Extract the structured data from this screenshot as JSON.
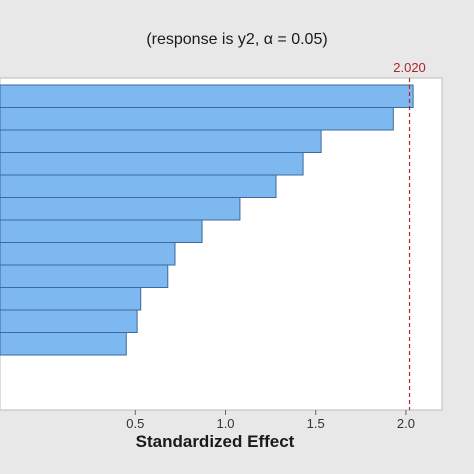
{
  "chart_data": {
    "type": "bar",
    "orientation": "horizontal",
    "subtitle": "(response is y2, α = 0.05)",
    "xlabel": "Standardized Effect",
    "ylabel": "",
    "xlim": [
      -0.25,
      2.2
    ],
    "xticks": [
      0.5,
      1.0,
      1.5,
      2.0
    ],
    "xtick_labels": [
      "0.5",
      "1.0",
      "1.5",
      "2.0"
    ],
    "values": [
      2.04,
      1.93,
      1.53,
      1.43,
      1.28,
      1.08,
      0.87,
      0.72,
      0.68,
      0.53,
      0.51,
      0.45
    ],
    "reference_line": {
      "value": 2.02,
      "label": "2.020",
      "style": "dashed"
    },
    "grid": false,
    "colors": {
      "bar_fill": "#7db8f0",
      "bar_stroke": "#3d6a99",
      "reference_line": "#b0242a",
      "background": "#e8e8e8",
      "plot_background": "#ffffff"
    }
  }
}
